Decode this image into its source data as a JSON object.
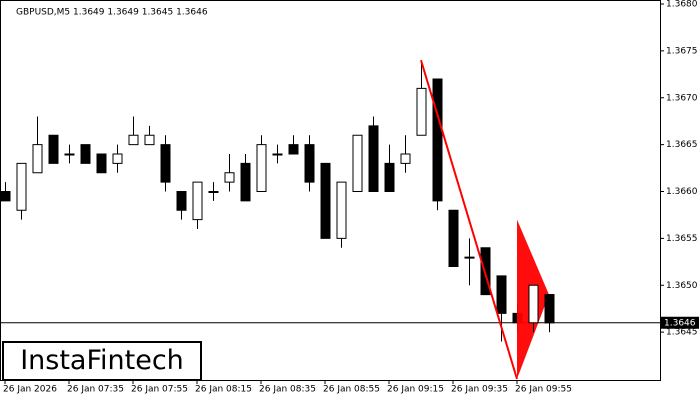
{
  "chart_data": {
    "type": "candlestick",
    "title": "GBPUSD,M5  1.3649 1.3649 1.3645 1.3646",
    "categories": [
      "26 Jan 2026",
      null,
      null,
      null,
      "26 Jan 07:35",
      null,
      null,
      null,
      "26 Jan 07:55",
      null,
      null,
      null,
      "26 Jan 08:15",
      null,
      null,
      null,
      "26 Jan 08:35",
      null,
      null,
      null,
      "26 Jan 08:55",
      null,
      null,
      null,
      "26 Jan 09:15",
      null,
      null,
      null,
      "26 Jan 09:35",
      null,
      null,
      null,
      "26 Jan 09:55",
      null,
      null
    ],
    "open": [
      1.366,
      1.3658,
      1.3662,
      1.3666,
      1.3664,
      1.3665,
      1.3664,
      1.3663,
      1.3665,
      1.3665,
      1.3665,
      1.366,
      1.3657,
      1.366,
      1.3661,
      1.3663,
      1.366,
      1.3664,
      1.3665,
      1.3665,
      1.3663,
      1.3655,
      1.366,
      1.3667,
      1.3663,
      1.3663,
      1.3666,
      1.3672,
      1.3658,
      1.3653,
      1.3654,
      1.3651,
      1.3647,
      1.3646,
      1.3649
    ],
    "high": [
      1.3661,
      1.3663,
      1.3668,
      1.3666,
      1.3665,
      1.3665,
      1.3664,
      1.3665,
      1.3668,
      1.3667,
      1.3666,
      1.366,
      1.3661,
      1.3661,
      1.3664,
      1.3664,
      1.3666,
      1.3665,
      1.3666,
      1.3666,
      1.3663,
      1.3661,
      1.3666,
      1.3668,
      1.3665,
      1.3666,
      1.3674,
      1.3672,
      1.3658,
      1.3655,
      1.3654,
      1.3651,
      1.3648,
      1.365,
      1.3649
    ],
    "low": [
      1.3659,
      1.3657,
      1.3662,
      1.3663,
      1.3663,
      1.3663,
      1.3662,
      1.3662,
      1.3665,
      1.3665,
      1.366,
      1.3657,
      1.3656,
      1.3659,
      1.366,
      1.3659,
      1.366,
      1.3663,
      1.3664,
      1.366,
      1.3655,
      1.3654,
      1.366,
      1.366,
      1.366,
      1.3662,
      1.3666,
      1.3658,
      1.3652,
      1.365,
      1.3649,
      1.3644,
      1.3645,
      1.3645,
      1.3645
    ],
    "close": [
      1.3659,
      1.3663,
      1.3665,
      1.3663,
      1.3664,
      1.3663,
      1.3662,
      1.3664,
      1.3666,
      1.3666,
      1.3661,
      1.3658,
      1.3661,
      1.366,
      1.3662,
      1.3659,
      1.3665,
      1.3664,
      1.3664,
      1.3661,
      1.3655,
      1.3661,
      1.3666,
      1.366,
      1.366,
      1.3664,
      1.3671,
      1.3659,
      1.3652,
      1.3653,
      1.3649,
      1.3647,
      1.3646,
      1.365,
      1.3646
    ],
    "ylim": [
      1.364,
      1.368
    ],
    "yticks": [
      1.3645,
      {
        "value": 1.365,
        "label": "1.3650"
      },
      1.3655,
      {
        "value": 1.366,
        "label": "1.3660"
      },
      1.3665,
      {
        "value": 1.367,
        "label": "1.3670"
      },
      1.3675,
      {
        "value": 1.368,
        "label": "1.3680"
      }
    ],
    "current_price": 1.3646,
    "pattern_color": "#ff0000",
    "pole": [
      [
        26,
        1.3674
      ],
      [
        32,
        1.364
      ]
    ],
    "flag": [
      [
        32,
        1.3657
      ],
      [
        32,
        1.364
      ],
      [
        34,
        1.3649
      ]
    ]
  },
  "watermark": "InstaFintech"
}
